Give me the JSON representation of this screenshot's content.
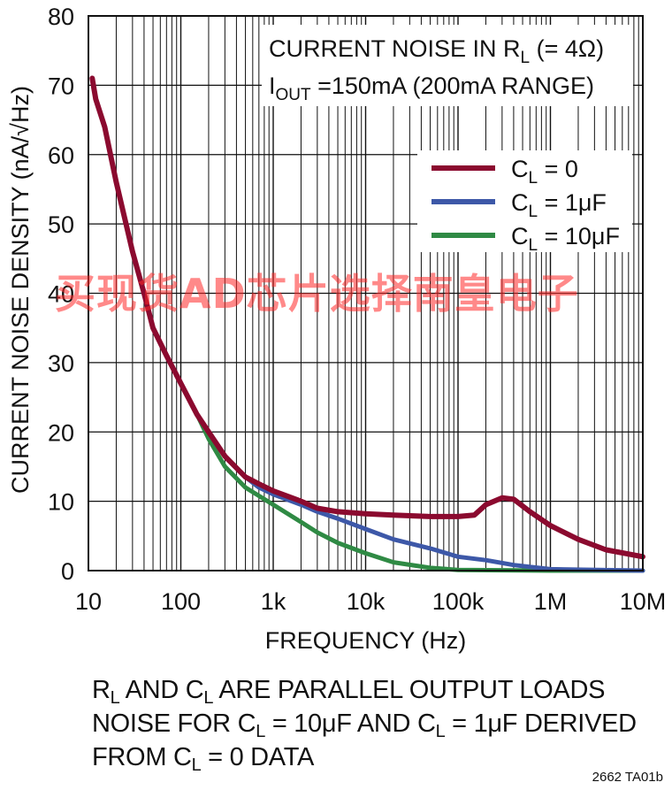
{
  "chart_data": {
    "type": "line",
    "title_line1": "CURRENT NOISE IN RL (= 4Ω)",
    "title_line2": "IOUT =150mA (200mA RANGE)",
    "xlabel": "FREQUENCY (Hz)",
    "ylabel": "CURRENT NOISE DENSITY (nA/√Hz)",
    "x_scale": "log",
    "xlim": [
      10,
      10000000
    ],
    "ylim": [
      0,
      80
    ],
    "x_ticks": [
      "10",
      "100",
      "1k",
      "10k",
      "100k",
      "1M",
      "10M"
    ],
    "y_ticks": [
      "0",
      "10",
      "20",
      "30",
      "40",
      "50",
      "60",
      "70",
      "80"
    ],
    "grid": true,
    "legend_position": "top-right",
    "series": [
      {
        "name": "CL = 0",
        "color": "#8b0a2f",
        "points": [
          [
            11,
            71
          ],
          [
            12,
            68
          ],
          [
            15,
            64
          ],
          [
            20,
            56
          ],
          [
            30,
            46
          ],
          [
            40,
            40
          ],
          [
            50,
            35
          ],
          [
            70,
            31
          ],
          [
            100,
            27
          ],
          [
            150,
            22.5
          ],
          [
            200,
            20
          ],
          [
            300,
            16.5
          ],
          [
            500,
            13.5
          ],
          [
            700,
            12.5
          ],
          [
            1000,
            11.5
          ],
          [
            2000,
            10
          ],
          [
            3000,
            9
          ],
          [
            5000,
            8.5
          ],
          [
            10000,
            8.2
          ],
          [
            20000,
            8
          ],
          [
            50000,
            7.8
          ],
          [
            100000,
            7.8
          ],
          [
            150000,
            8
          ],
          [
            200000,
            9.5
          ],
          [
            300000,
            10.5
          ],
          [
            400000,
            10.3
          ],
          [
            600000,
            8.5
          ],
          [
            1000000,
            6.5
          ],
          [
            2000000,
            4.5
          ],
          [
            4000000,
            3
          ],
          [
            10000000,
            2
          ]
        ]
      },
      {
        "name": "CL = 1μF",
        "color": "#3d58a8",
        "points": [
          [
            11,
            71
          ],
          [
            12,
            68
          ],
          [
            15,
            64
          ],
          [
            20,
            56
          ],
          [
            30,
            46
          ],
          [
            40,
            40
          ],
          [
            50,
            35
          ],
          [
            70,
            31
          ],
          [
            100,
            27
          ],
          [
            150,
            22.5
          ],
          [
            200,
            20
          ],
          [
            300,
            16.5
          ],
          [
            500,
            13.5
          ],
          [
            700,
            12
          ],
          [
            1000,
            11
          ],
          [
            2000,
            9.5
          ],
          [
            3000,
            8.5
          ],
          [
            5000,
            7.5
          ],
          [
            10000,
            6
          ],
          [
            20000,
            4.5
          ],
          [
            50000,
            3.2
          ],
          [
            100000,
            2
          ],
          [
            200000,
            1.5
          ],
          [
            400000,
            0.8
          ],
          [
            1000000,
            0.2
          ],
          [
            10000000,
            0
          ]
        ]
      },
      {
        "name": "CL = 10μF",
        "color": "#2f8a44",
        "points": [
          [
            11,
            71
          ],
          [
            12,
            68
          ],
          [
            15,
            64
          ],
          [
            20,
            56
          ],
          [
            30,
            46
          ],
          [
            40,
            40
          ],
          [
            50,
            35
          ],
          [
            70,
            31
          ],
          [
            100,
            27
          ],
          [
            150,
            22.5
          ],
          [
            200,
            19
          ],
          [
            300,
            15
          ],
          [
            500,
            12
          ],
          [
            1000,
            9.5
          ],
          [
            2000,
            7
          ],
          [
            3000,
            5.5
          ],
          [
            5000,
            4
          ],
          [
            10000,
            2.5
          ],
          [
            20000,
            1.2
          ],
          [
            50000,
            0.4
          ],
          [
            100000,
            0.1
          ],
          [
            1000000,
            0
          ],
          [
            10000000,
            0
          ]
        ]
      }
    ]
  },
  "notes": [
    "RL AND CL ARE PARALLEL OUTPUT LOADS",
    "NOISE FOR CL = 10μF AND CL = 1μF DERIVED",
    "FROM CL = 0 DATA"
  ],
  "figure_id": "2662 TA01b",
  "watermark": "买现货AD芯片选择南皇电子"
}
